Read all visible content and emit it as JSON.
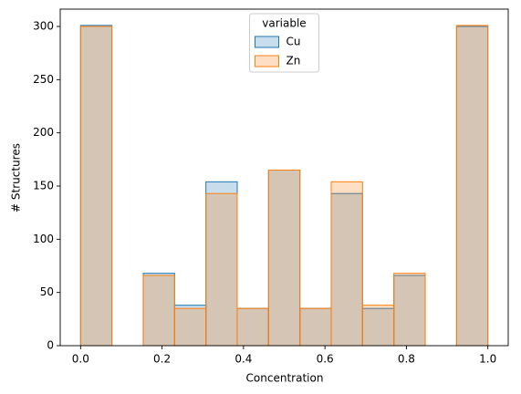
{
  "chart_data": {
    "type": "histogram",
    "xlabel": "Concentration",
    "ylabel": "# Structures",
    "bins": [
      0,
      0.0769,
      0.1538,
      0.2308,
      0.3077,
      0.3846,
      0.4615,
      0.5385,
      0.6154,
      0.6923,
      0.7692,
      0.8462,
      0.9231,
      1.0
    ],
    "series": [
      {
        "name": "Cu",
        "color": "#1f77b4",
        "values": [
          301,
          0,
          68,
          38,
          154,
          35,
          165,
          35,
          143,
          35,
          66,
          0,
          300
        ]
      },
      {
        "name": "Zn",
        "color": "#ff7f0e",
        "values": [
          300,
          0,
          66,
          35,
          143,
          35,
          165,
          35,
          154,
          38,
          68,
          0,
          301
        ]
      }
    ],
    "legend_title": "variable",
    "legend_loc": "upper center",
    "xlim": [
      -0.05,
      1.05
    ],
    "xticks": [
      {
        "value": 0,
        "label": "0.0"
      },
      {
        "value": 0.2,
        "label": "0.2"
      },
      {
        "value": 0.4,
        "label": "0.4"
      },
      {
        "value": 0.6,
        "label": "0.6"
      },
      {
        "value": 0.8,
        "label": "0.8"
      },
      {
        "value": 1,
        "label": "1.0"
      }
    ],
    "ylim": [
      0,
      316.3
    ],
    "yticks": [
      0,
      50,
      100,
      150,
      200,
      250,
      300
    ]
  }
}
